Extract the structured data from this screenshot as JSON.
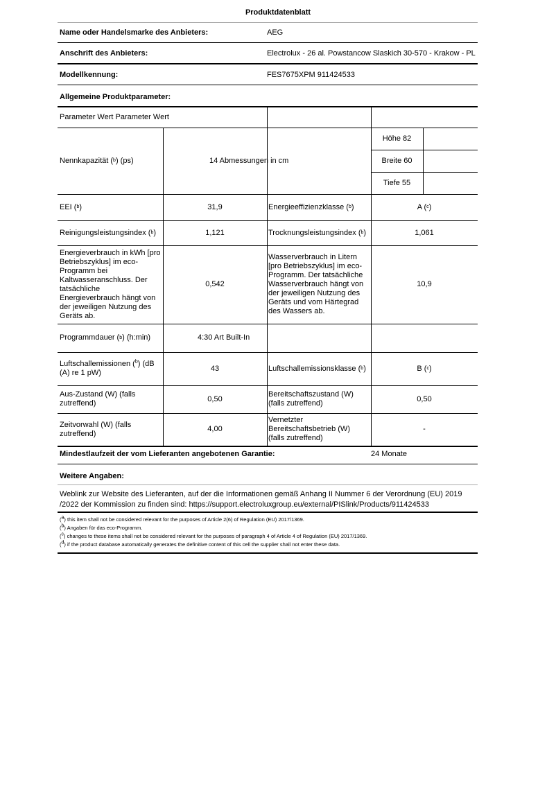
{
  "title": "Produktdatenblatt",
  "supplier": {
    "label": "Name oder Handelsmarke des Anbieters:",
    "value": "AEG"
  },
  "address": {
    "label": "Anschrift des Anbieters:",
    "value": "Electrolux - 26 al. Powstancow Slaskich 30-570 - Krakow - PL"
  },
  "model": {
    "label": "Modellkennung:",
    "value": "FES7675XPM 911424533"
  },
  "general": {
    "label": "Allgemeine Produktparameter:"
  },
  "table": {
    "header": "Parameter Wert Parameter Wert",
    "capacity": {
      "label_a": "Nennkapazität (",
      "note": "b",
      "label_b": ") (ps)",
      "value": "14 Abmessungen in cm",
      "dims": [
        "Höhe 82",
        "Breite 60",
        "Tiefe 55"
      ]
    },
    "eei": {
      "label_a": "EEI (",
      "note": "b",
      "label_b": ")",
      "value": "31,9",
      "label2_a": "Energieeffizienzklasse (",
      "note2": "b",
      "label2_b": ")",
      "value2_a": "A (",
      "note3": "c",
      "value2_b": ")"
    },
    "cleaning": {
      "label_a": "Reinigungsleistungsindex (",
      "note": "b",
      "label_b": ")",
      "value": "1,121",
      "label2_a": "Trocknungsleistungsindex (",
      "note2": "b",
      "label2_b": ")",
      "value2": "1,061"
    },
    "energy": {
      "label": "Energieverbrauch in kWh [pro Betriebszyklus] im eco-Programm bei Kaltwasseranschluss. Der tatsächliche Energieverbrauch hängt von der jeweiligen Nutzung des Geräts ab.",
      "value": "0,542",
      "label2": "Wasserverbrauch in Litern [pro Betriebszyklus] im eco-Programm. Der tatsächliche Wasserverbrauch hängt von der jeweiligen Nutzung des Geräts und vom Härtegrad des Wassers ab.",
      "value2": "10,9"
    },
    "duration": {
      "label_a": "Programmdauer (",
      "note": "b",
      "label_b": ") (h:min)",
      "value": "4:30 Art Built-In"
    },
    "noise": {
      "label_a": "Luftschallemissionen (",
      "note": "b",
      "label_b": ") (dB (A) re 1 pW)",
      "value": "43",
      "label2_a": "Luftschallemissionsklasse (",
      "note2": "b",
      "label2_b": ")",
      "value2_a": "B (",
      "note3": "c",
      "value2_b": ")"
    },
    "off": {
      "label": "Aus-Zustand (W) (falls zutreffend)",
      "value": "0,50",
      "label2": "Bereitschaftszustand (W) (falls zutreffend)",
      "value2": "0,50"
    },
    "delay": {
      "label": "Zeitvorwahl (W) (falls zutreffend)",
      "value": "4,00",
      "label2": "Vernetzter Bereitschaftsbetrieb (W) (falls zutreffend)",
      "value2": "-"
    }
  },
  "warranty": {
    "label": "Mindestlaufzeit der vom Lieferanten angebotenen Garantie:",
    "value": "24 Monate"
  },
  "more": {
    "label": "Weitere Angaben:",
    "text": "Weblink zur Website des Lieferanten, auf der die Informationen gemäß Anhang II Nummer 6 der Verordnung (EU) 2019 /2022 der Kommission zu finden sind: https://support.electroluxgroup.eu/external/PISlink/Products/911424533"
  },
  "footnotes": [
    {
      "mark": "a",
      "text": "this item shall not be considered relevant for the purposes of Article 2(6) of Regulation (EU) 2017/1369."
    },
    {
      "mark": "b",
      "text": "Angaben für das eco-Programm."
    },
    {
      "mark": "c",
      "text": "changes to these items shall not be considered relevant for the purposes of paragraph 4 of Article 4 of Regulation (EU) 2017/1369."
    },
    {
      "mark": "d",
      "text": "if the product database automatically generates the definitive content of this cell the supplier shall not enter these data."
    }
  ]
}
